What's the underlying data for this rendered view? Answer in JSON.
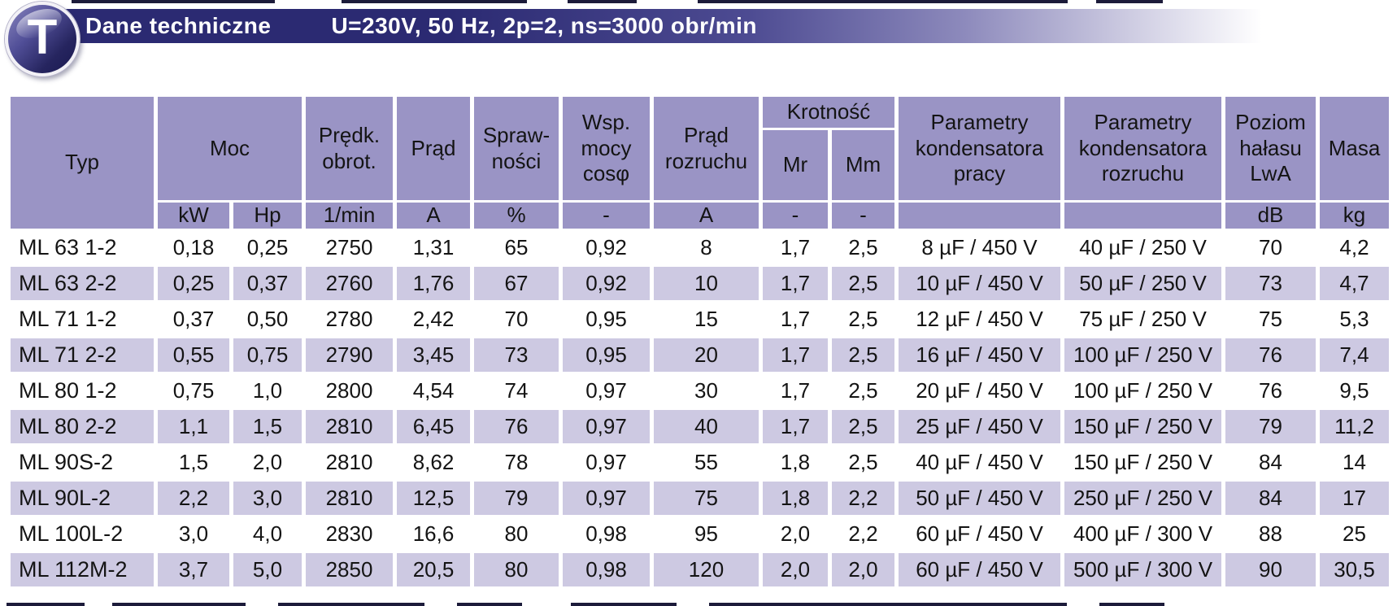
{
  "banner": {
    "logo_letter": "T",
    "title": "Dane techniczne",
    "subtitle": "U=230V, 50 Hz, 2p=2, ns=3000 obr/min"
  },
  "colors": {
    "banner_dark": "#2b2a72",
    "header_cell_purple": "#9a94c5",
    "row_alternate_lavender": "#cdc9e2",
    "text": "#141414"
  },
  "table": {
    "columns": {
      "typ": "Typ",
      "moc": "Moc",
      "predk_obrot": "Prędk.\nobrot.",
      "prad": "Prąd",
      "sprawnosci": "Spraw-\nności",
      "wsp_mocy": "Wsp.\nmocy\ncosφ",
      "prad_rozruchu": "Prąd\nrozruchu",
      "krotnosc": "Krotność",
      "mr": "Mr",
      "mm": "Mm",
      "param_kondensatora_pracy": "Parametry\nkondensatora\npracy",
      "param_kondensatora_rozruchu": "Parametry\nkondensatora\nrozruchu",
      "poziom_halasu": "Poziom\nhałasu\nLwA",
      "masa": "Masa"
    },
    "units": [
      "kW",
      "Hp",
      "1/min",
      "A",
      "%",
      "-",
      "A",
      "-",
      "-",
      "",
      "",
      "dB",
      "kg"
    ],
    "rows": [
      {
        "typ": "ML 63 1-2",
        "values": [
          "0,18",
          "0,25",
          "2750",
          "1,31",
          "65",
          "0,92",
          "8",
          "1,7",
          "2,5",
          "8 µF / 450 V",
          "40 µF / 250 V",
          "70",
          "4,2"
        ]
      },
      {
        "typ": "ML 63 2-2",
        "values": [
          "0,25",
          "0,37",
          "2760",
          "1,76",
          "67",
          "0,92",
          "10",
          "1,7",
          "2,5",
          "10 µF / 450 V",
          "50 µF / 250 V",
          "73",
          "4,7"
        ]
      },
      {
        "typ": "ML 71 1-2",
        "values": [
          "0,37",
          "0,50",
          "2780",
          "2,42",
          "70",
          "0,95",
          "15",
          "1,7",
          "2,5",
          "12 µF / 450 V",
          "75 µF / 250 V",
          "75",
          "5,3"
        ]
      },
      {
        "typ": "ML 71 2-2",
        "values": [
          "0,55",
          "0,75",
          "2790",
          "3,45",
          "73",
          "0,95",
          "20",
          "1,7",
          "2,5",
          "16 µF / 450 V",
          "100 µF / 250 V",
          "76",
          "7,4"
        ]
      },
      {
        "typ": "ML 80 1-2",
        "values": [
          "0,75",
          "1,0",
          "2800",
          "4,54",
          "74",
          "0,97",
          "30",
          "1,7",
          "2,5",
          "20 µF / 450 V",
          "100 µF / 250 V",
          "76",
          "9,5"
        ]
      },
      {
        "typ": "ML 80 2-2",
        "values": [
          "1,1",
          "1,5",
          "2810",
          "6,45",
          "76",
          "0,97",
          "40",
          "1,7",
          "2,5",
          "25 µF / 450 V",
          "150 µF / 250 V",
          "79",
          "11,2"
        ]
      },
      {
        "typ": "ML 90S-2",
        "values": [
          "1,5",
          "2,0",
          "2810",
          "8,62",
          "78",
          "0,97",
          "55",
          "1,8",
          "2,5",
          "40 µF / 450 V",
          "150 µF / 250 V",
          "84",
          "14"
        ]
      },
      {
        "typ": "ML 90L-2",
        "values": [
          "2,2",
          "3,0",
          "2810",
          "12,5",
          "79",
          "0,97",
          "75",
          "1,8",
          "2,2",
          "50 µF / 450 V",
          "250 µF / 250 V",
          "84",
          "17"
        ]
      },
      {
        "typ": "ML 100L-2",
        "values": [
          "3,0",
          "4,0",
          "2830",
          "16,6",
          "80",
          "0,98",
          "95",
          "2,0",
          "2,2",
          "60 µF / 450 V",
          "400 µF / 300 V",
          "88",
          "25"
        ]
      },
      {
        "typ": "ML 112M-2",
        "values": [
          "3,7",
          "5,0",
          "2850",
          "20,5",
          "80",
          "0,98",
          "120",
          "2,0",
          "2,0",
          "60 µF / 450 V",
          "500 µF / 300 V",
          "90",
          "30,5"
        ]
      }
    ]
  }
}
